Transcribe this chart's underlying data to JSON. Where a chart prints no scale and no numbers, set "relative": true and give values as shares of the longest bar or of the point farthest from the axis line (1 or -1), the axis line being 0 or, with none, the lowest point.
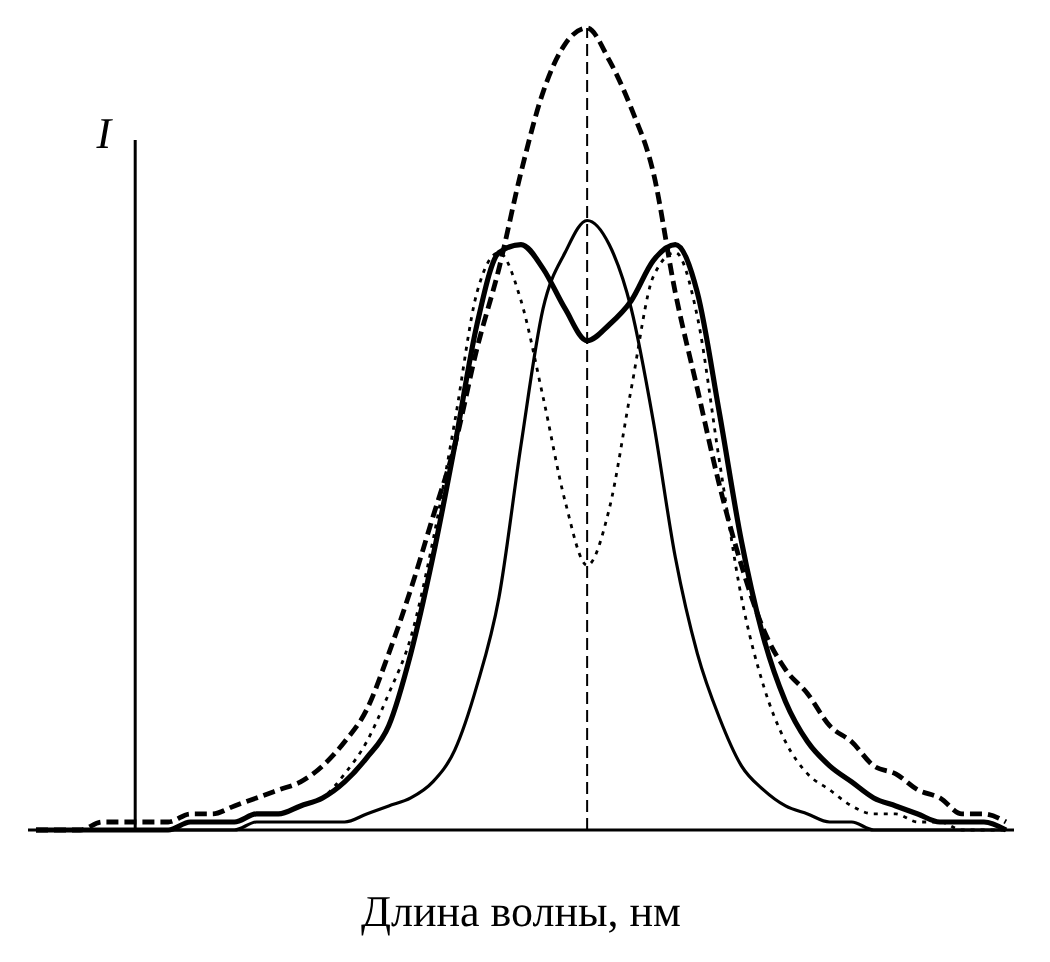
{
  "chart_data": {
    "type": "line",
    "relative": true,
    "xlabel": "Длина волны, нм",
    "ylabel": "I",
    "categories": [
      null,
      null,
      null,
      null,
      null,
      null,
      null,
      null,
      null,
      null,
      null,
      null,
      null,
      null,
      null,
      null,
      null,
      null,
      null,
      null,
      null,
      null,
      null,
      null,
      null,
      null,
      null,
      null,
      null,
      null,
      null,
      null,
      null,
      null,
      null,
      null,
      null,
      null,
      null,
      null,
      null,
      null,
      null,
      null,
      null
    ],
    "series": [
      {
        "color": "#000000",
        "line_style": "dashed",
        "values": [
          0,
          0,
          0,
          0.01,
          0.01,
          0.01,
          0.01,
          0.02,
          0.02,
          0.03,
          0.04,
          0.05,
          0.06,
          0.08,
          0.11,
          0.15,
          0.22,
          0.3,
          0.39,
          0.48,
          0.6,
          0.7,
          0.82,
          0.92,
          0.98,
          1,
          0.96,
          0.9,
          0.82,
          0.67,
          0.55,
          0.43,
          0.33,
          0.25,
          0.2,
          0.17,
          0.13,
          0.11,
          0.08,
          0.07,
          0.05,
          0.04,
          0.02,
          0.02,
          0.01
        ]
      },
      {
        "color": "#000000",
        "line_style": "solid",
        "values": [
          0,
          0,
          0,
          0,
          0,
          0,
          0,
          0.01,
          0.01,
          0.01,
          0.02,
          0.02,
          0.03,
          0.04,
          0.06,
          0.09,
          0.13,
          0.22,
          0.34,
          0.48,
          0.63,
          0.72,
          0.73,
          0.7,
          0.65,
          0.61,
          0.63,
          0.66,
          0.71,
          0.73,
          0.67,
          0.52,
          0.36,
          0.24,
          0.16,
          0.11,
          0.08,
          0.06,
          0.04,
          0.03,
          0.02,
          0.01,
          0.01,
          0.01,
          0
        ]
      },
      {
        "color": "#000000",
        "line_style": "solid",
        "values": [
          0,
          0,
          0,
          0,
          0,
          0,
          0,
          0,
          0,
          0,
          0.01,
          0.01,
          0.01,
          0.01,
          0.01,
          0.02,
          0.03,
          0.04,
          0.06,
          0.1,
          0.18,
          0.29,
          0.48,
          0.65,
          0.72,
          0.76,
          0.73,
          0.65,
          0.51,
          0.34,
          0.22,
          0.14,
          0.08,
          0.05,
          0.03,
          0.02,
          0.01,
          0.01,
          0,
          0,
          0,
          0,
          0,
          0,
          0
        ]
      },
      {
        "color": "#000000",
        "line_style": "dotted",
        "values": [
          0,
          0,
          0,
          0,
          0,
          0,
          0,
          0.01,
          0.01,
          0.01,
          0.02,
          0.02,
          0.03,
          0.04,
          0.07,
          0.11,
          0.17,
          0.24,
          0.36,
          0.51,
          0.67,
          0.72,
          0.66,
          0.54,
          0.41,
          0.33,
          0.4,
          0.55,
          0.69,
          0.72,
          0.64,
          0.46,
          0.29,
          0.18,
          0.11,
          0.07,
          0.05,
          0.03,
          0.02,
          0.02,
          0.01,
          0.01,
          0,
          0,
          0
        ]
      }
    ],
    "grid": false
  }
}
